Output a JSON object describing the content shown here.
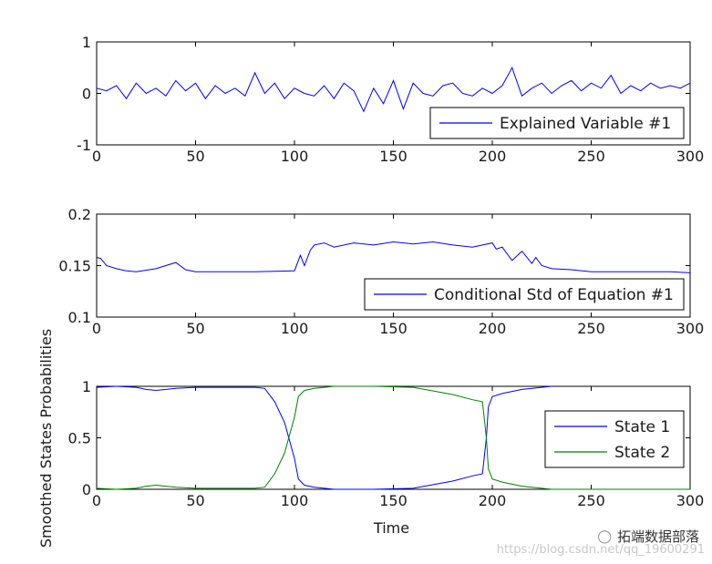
{
  "chart_data": [
    {
      "type": "line",
      "xlim": [
        0,
        300
      ],
      "ylim": [
        -1,
        1
      ],
      "xticks": [
        "0",
        "50",
        "100",
        "150",
        "200",
        "250",
        "300"
      ],
      "yticks": [
        "-1",
        "0",
        "1"
      ],
      "legend_position": "bottom-right",
      "series": [
        {
          "name": "Explained Variable #1",
          "color": "#0000ff",
          "x": [
            0,
            5,
            10,
            15,
            20,
            25,
            30,
            35,
            40,
            45,
            50,
            55,
            60,
            65,
            70,
            75,
            80,
            85,
            90,
            95,
            100,
            105,
            110,
            115,
            120,
            125,
            130,
            135,
            140,
            145,
            150,
            155,
            160,
            165,
            170,
            175,
            180,
            185,
            190,
            195,
            200,
            205,
            210,
            215,
            220,
            225,
            230,
            235,
            240,
            245,
            250,
            255,
            260,
            265,
            270,
            275,
            280,
            285,
            290,
            295,
            300
          ],
          "y": [
            0.1,
            0.05,
            0.15,
            -0.1,
            0.2,
            0.0,
            0.1,
            -0.05,
            0.25,
            0.05,
            0.2,
            -0.1,
            0.15,
            0.0,
            0.1,
            -0.05,
            0.4,
            0.0,
            0.2,
            -0.1,
            0.1,
            0.0,
            -0.05,
            0.15,
            -0.1,
            0.2,
            0.05,
            -0.35,
            0.1,
            -0.2,
            0.25,
            -0.3,
            0.2,
            0.0,
            -0.05,
            0.15,
            0.2,
            0.0,
            -0.05,
            0.1,
            0.0,
            0.15,
            0.5,
            -0.05,
            0.1,
            0.2,
            0.0,
            0.15,
            0.25,
            0.05,
            0.2,
            0.1,
            0.35,
            0.0,
            0.15,
            0.05,
            0.2,
            0.1,
            0.15,
            0.1,
            0.2
          ]
        }
      ]
    },
    {
      "type": "line",
      "xlim": [
        0,
        300
      ],
      "ylim": [
        0.1,
        0.2
      ],
      "xticks": [
        "0",
        "50",
        "100",
        "150",
        "200",
        "250",
        "300"
      ],
      "yticks": [
        "0.1",
        "0.15",
        "0.2"
      ],
      "legend_position": "bottom-right",
      "series": [
        {
          "name": "Conditional Std of Equation #1",
          "color": "#0000ff",
          "x": [
            0,
            2,
            5,
            10,
            15,
            20,
            30,
            40,
            45,
            50,
            60,
            80,
            100,
            103,
            105,
            108,
            110,
            115,
            120,
            130,
            140,
            150,
            160,
            170,
            180,
            190,
            200,
            202,
            205,
            210,
            215,
            220,
            222,
            225,
            230,
            240,
            250,
            270,
            290,
            300
          ],
          "y": [
            0.158,
            0.157,
            0.15,
            0.147,
            0.145,
            0.144,
            0.147,
            0.153,
            0.146,
            0.144,
            0.144,
            0.144,
            0.145,
            0.16,
            0.15,
            0.165,
            0.17,
            0.172,
            0.168,
            0.172,
            0.17,
            0.173,
            0.171,
            0.173,
            0.17,
            0.168,
            0.172,
            0.166,
            0.168,
            0.155,
            0.164,
            0.152,
            0.158,
            0.15,
            0.147,
            0.146,
            0.144,
            0.144,
            0.144,
            0.143
          ]
        }
      ]
    },
    {
      "type": "line",
      "xlim": [
        0,
        300
      ],
      "ylim": [
        0,
        1
      ],
      "xticks": [
        "0",
        "50",
        "100",
        "150",
        "200",
        "250",
        "300"
      ],
      "yticks": [
        "0",
        "0.5",
        "1"
      ],
      "xlabel": "Time",
      "ylabel": "Smoothed States Probabilities",
      "legend_position": "right",
      "series": [
        {
          "name": "State 1",
          "color": "#0000ff",
          "x": [
            0,
            10,
            20,
            25,
            30,
            35,
            40,
            50,
            60,
            70,
            80,
            85,
            90,
            95,
            100,
            102,
            105,
            110,
            120,
            140,
            160,
            180,
            190,
            195,
            197,
            198,
            200,
            205,
            210,
            215,
            220,
            225,
            230
          ],
          "y": [
            0.99,
            1.0,
            0.99,
            0.97,
            0.96,
            0.97,
            0.98,
            0.99,
            0.99,
            0.99,
            0.99,
            0.98,
            0.85,
            0.65,
            0.3,
            0.1,
            0.04,
            0.02,
            0.0,
            0.0,
            0.01,
            0.08,
            0.13,
            0.15,
            0.5,
            0.8,
            0.9,
            0.93,
            0.95,
            0.97,
            0.98,
            0.99,
            1.0
          ]
        },
        {
          "name": "State 2",
          "color": "#008000",
          "x": [
            0,
            10,
            20,
            25,
            30,
            35,
            40,
            50,
            60,
            70,
            80,
            85,
            90,
            95,
            100,
            102,
            105,
            110,
            120,
            140,
            160,
            180,
            190,
            195,
            197,
            198,
            200,
            205,
            210,
            215,
            220,
            225,
            230,
            250,
            300
          ],
          "y": [
            0.01,
            0.0,
            0.01,
            0.03,
            0.04,
            0.03,
            0.02,
            0.01,
            0.01,
            0.01,
            0.01,
            0.02,
            0.15,
            0.35,
            0.7,
            0.9,
            0.96,
            0.98,
            1.0,
            1.0,
            0.99,
            0.92,
            0.87,
            0.85,
            0.5,
            0.2,
            0.1,
            0.07,
            0.05,
            0.03,
            0.02,
            0.01,
            0.0,
            0.0,
            0.0
          ]
        }
      ]
    }
  ],
  "watermark": {
    "brand": "拓端数据部落",
    "url": "https://blog.csdn.net/qq_19600291"
  }
}
